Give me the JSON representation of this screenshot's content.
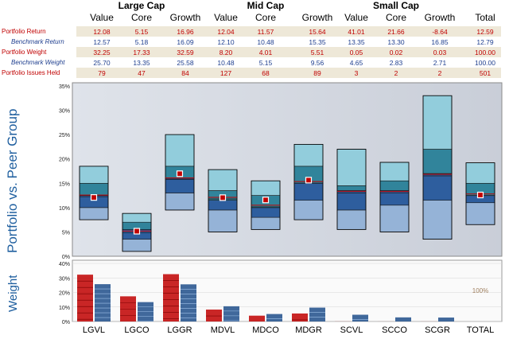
{
  "header": {
    "groups": [
      {
        "label": "Large Cap"
      },
      {
        "label": "Mid Cap"
      },
      {
        "label": "Small Cap"
      }
    ],
    "subheaders": [
      "Value",
      "Core",
      "Growth",
      "Value",
      "Core",
      "Growth",
      "Value",
      "Core",
      "Growth",
      "Total"
    ]
  },
  "table": {
    "rows": [
      {
        "label": "Portfolio Return",
        "style": "red",
        "values": [
          "12.08",
          "5.15",
          "16.96",
          "12.04",
          "11.57",
          "15.64",
          "41.01",
          "21.66",
          "-8.64",
          "12.59"
        ]
      },
      {
        "label": "Benchmark Return",
        "style": "bench",
        "values": [
          "12.57",
          "5.18",
          "16.09",
          "12.10",
          "10.48",
          "15.35",
          "13.35",
          "13.30",
          "16.85",
          "12.79"
        ]
      },
      {
        "label": "Portfolio Weight",
        "style": "red",
        "values": [
          "32.25",
          "17.33",
          "32.59",
          "8.20",
          "4.01",
          "5.51",
          "0.05",
          "0.02",
          "0.03",
          "100.00"
        ]
      },
      {
        "label": "Benchmark Weight",
        "style": "bench",
        "values": [
          "25.70",
          "13.35",
          "25.58",
          "10.48",
          "5.15",
          "9.56",
          "4.65",
          "2.83",
          "2.71",
          "100.00"
        ]
      },
      {
        "label": "Portfolio Issues Held",
        "style": "red",
        "values": [
          "79",
          "47",
          "84",
          "127",
          "68",
          "89",
          "3",
          "2",
          "2",
          "501"
        ]
      }
    ]
  },
  "titles": {
    "main_ylabel": "Portfolio vs. Peer Group",
    "weight_ylabel": "Weight",
    "total_weight_label": "100%"
  },
  "colors": {
    "q1": "#92cddc",
    "q2": "#31849b",
    "q3": "#2e5e9e",
    "q4": "#95b3d7",
    "portfolio_marker": "#c00000",
    "bench_line": "#c00000",
    "weight_portfolio": "#c00000",
    "weight_benchmark": "#1f4e89"
  },
  "chart_data": [
    {
      "type": "bar",
      "subtype": "floating-quartile",
      "categories": [
        "LGVL",
        "LGCO",
        "LGGR",
        "MDVL",
        "MDCO",
        "MDGR",
        "SCVL",
        "SCCO",
        "SCGR",
        "TOTAL"
      ],
      "ylim": [
        0,
        35
      ],
      "yticks": [
        "0%",
        "5%",
        "10%",
        "15%",
        "20%",
        "25%",
        "30%",
        "35%"
      ],
      "series": [
        {
          "name": "",
          "values": [
            [
              7.5,
              10,
              12.5,
              15,
              18.5
            ],
            [
              1,
              3.5,
              5.5,
              7,
              8.8
            ],
            [
              9.5,
              13,
              16,
              18.5,
              25
            ],
            [
              5,
              9.5,
              11.5,
              13.5,
              17.8
            ],
            [
              5.5,
              8,
              10,
              12.5,
              15.5
            ],
            [
              7.5,
              11.5,
              15,
              18.5,
              23
            ],
            [
              5.5,
              9.5,
              13.5,
              14.5,
              22
            ],
            [
              5,
              10.5,
              13.5,
              15.5,
              19.3
            ],
            [
              3.5,
              11.5,
              17,
              22,
              33
            ],
            [
              6.5,
              11,
              12.5,
              15,
              19.2
            ]
          ]
        },
        {
          "name": "",
          "values": [
            12.08,
            5.15,
            16.96,
            12.04,
            11.57,
            15.64,
            null,
            null,
            null,
            12.59
          ]
        },
        {
          "name": "",
          "values": [
            12.57,
            5.18,
            16.09,
            12.1,
            10.48,
            15.35,
            13.35,
            13.3,
            16.85,
            12.79
          ]
        }
      ]
    },
    {
      "type": "bar",
      "categories": [
        "LGVL",
        "LGCO",
        "LGGR",
        "MDVL",
        "MDCO",
        "MDGR",
        "SCVL",
        "SCCO",
        "SCGR",
        "TOTAL"
      ],
      "ylim": [
        0,
        40
      ],
      "yticks": [
        "0%",
        "10%",
        "20%",
        "30%",
        "40%"
      ],
      "series": [
        {
          "name": "",
          "values": [
            32.25,
            17.33,
            32.59,
            8.2,
            4.01,
            5.51,
            0.05,
            0.02,
            0.03,
            null
          ]
        },
        {
          "name": "",
          "values": [
            25.7,
            13.35,
            25.58,
            10.48,
            5.15,
            9.56,
            4.65,
            2.83,
            2.71,
            null
          ]
        }
      ]
    }
  ]
}
